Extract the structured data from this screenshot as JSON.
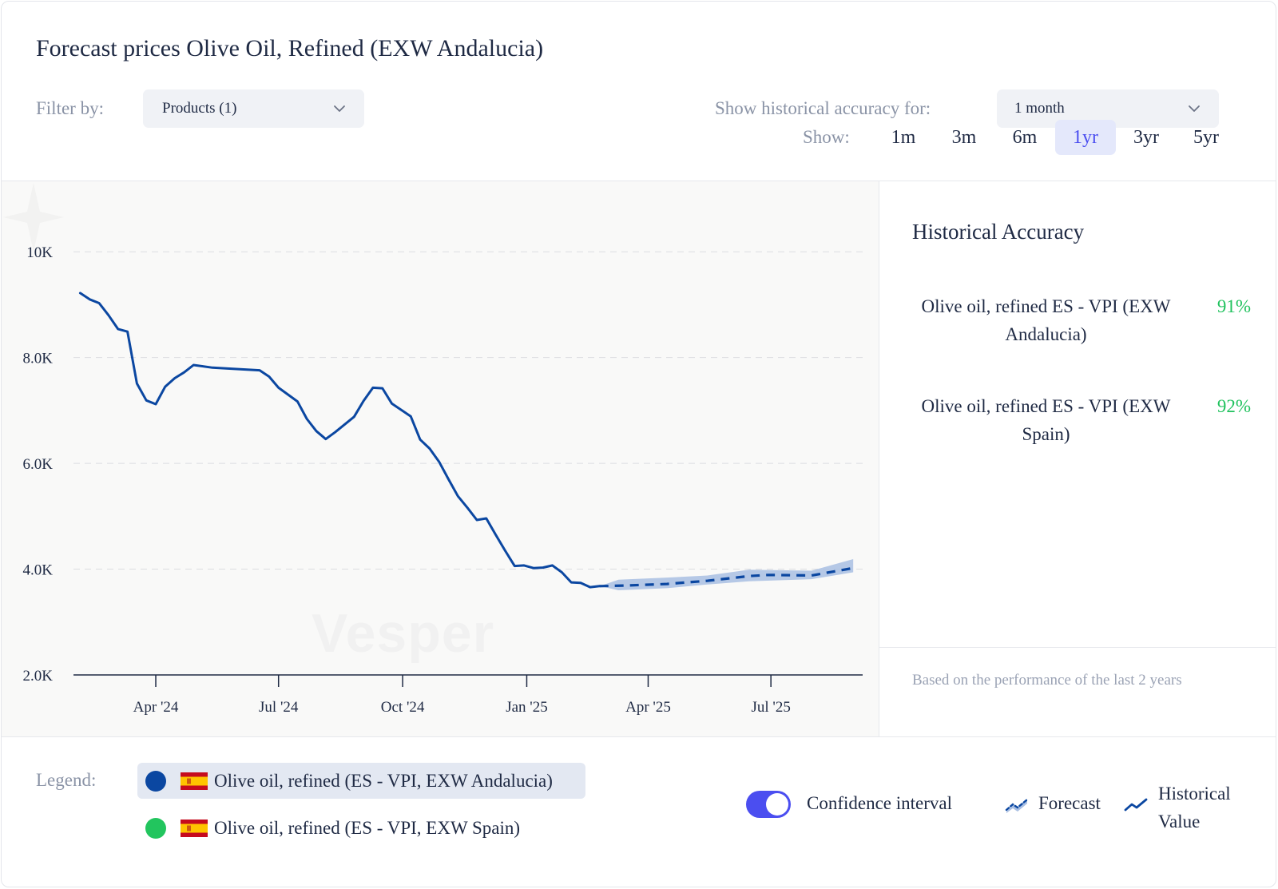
{
  "title": "Forecast prices Olive Oil, Refined (EXW Andalucia)",
  "filters": {
    "filter_label": "Filter by:",
    "products_value": "Products (1)",
    "accuracy_label": "Show historical accuracy for:",
    "accuracy_value": "1 month",
    "show_label": "Show:",
    "ranges": [
      "1m",
      "3m",
      "6m",
      "1yr",
      "3yr",
      "5yr"
    ],
    "active_range": "1yr"
  },
  "historical_accuracy": {
    "title": "Historical Accuracy",
    "items": [
      {
        "name": "Olive oil, refined ES - VPI (EXW Andalucia)",
        "line1": "Olive oil, refined ES - VPI (EXW",
        "line2": "Andalucia)",
        "value": "91%"
      },
      {
        "name": "Olive oil, refined ES - VPI (EXW Spain)",
        "line1": "Olive oil, refined ES - VPI (EXW",
        "line2": "Spain)",
        "value": "92%"
      }
    ],
    "footnote": "Based on the performance of the last 2 years"
  },
  "legend": {
    "label": "Legend:",
    "items": [
      {
        "name": "Olive oil, refined (ES - VPI, EXW Andalucia)",
        "color": "#0b47a1",
        "active": true
      },
      {
        "name": "Olive oil, refined (ES - VPI, EXW Spain)",
        "color": "#22c55e",
        "active": false
      }
    ],
    "confidence_label": "Confidence interval",
    "confidence_on": true,
    "forecast_label": "Forecast",
    "historical_label_1": "Historical",
    "historical_label_2": "Value"
  },
  "watermark": "Vesper",
  "colors": {
    "series": "#0b47a1",
    "band": "#a9bfe3",
    "accent": "#4b4ef0",
    "positive": "#21c25e"
  },
  "chart_data": {
    "type": "line",
    "x_axis": "time",
    "xlim": [
      "2024-01-31",
      "2025-09-07"
    ],
    "ylim": [
      2000,
      10200
    ],
    "yticks": [
      {
        "value": 2000,
        "label": "2.0K"
      },
      {
        "value": 4000,
        "label": "4.0K"
      },
      {
        "value": 6000,
        "label": "6.0K"
      },
      {
        "value": 8000,
        "label": "8.0K"
      },
      {
        "value": 10000,
        "label": "10K"
      }
    ],
    "xticks": [
      {
        "date": "2024-04-01",
        "label": "Apr '24"
      },
      {
        "date": "2024-07-01",
        "label": "Jul '24"
      },
      {
        "date": "2024-10-01",
        "label": "Oct '24"
      },
      {
        "date": "2025-01-01",
        "label": "Jan '25"
      },
      {
        "date": "2025-04-01",
        "label": "Apr '25"
      },
      {
        "date": "2025-07-01",
        "label": "Jul '25"
      }
    ],
    "grid": "horizontal-dashed",
    "series": [
      {
        "type": "historical",
        "points": [
          [
            "2024-02-05",
            9220
          ],
          [
            "2024-02-12",
            9100
          ],
          [
            "2024-02-19",
            9030
          ],
          [
            "2024-02-26",
            8800
          ],
          [
            "2024-03-04",
            8540
          ],
          [
            "2024-03-11",
            8490
          ],
          [
            "2024-03-18",
            7510
          ],
          [
            "2024-03-25",
            7190
          ],
          [
            "2024-04-01",
            7120
          ],
          [
            "2024-04-08",
            7450
          ],
          [
            "2024-04-15",
            7610
          ],
          [
            "2024-04-22",
            7720
          ],
          [
            "2024-04-29",
            7860
          ],
          [
            "2024-05-13",
            7810
          ],
          [
            "2024-05-27",
            7790
          ],
          [
            "2024-06-17",
            7760
          ],
          [
            "2024-06-24",
            7640
          ],
          [
            "2024-07-01",
            7430
          ],
          [
            "2024-07-15",
            7170
          ],
          [
            "2024-07-22",
            6840
          ],
          [
            "2024-07-29",
            6610
          ],
          [
            "2024-08-05",
            6460
          ],
          [
            "2024-08-12",
            6590
          ],
          [
            "2024-08-26",
            6880
          ],
          [
            "2024-09-02",
            7180
          ],
          [
            "2024-09-09",
            7430
          ],
          [
            "2024-09-16",
            7420
          ],
          [
            "2024-09-23",
            7130
          ],
          [
            "2024-10-07",
            6890
          ],
          [
            "2024-10-14",
            6450
          ],
          [
            "2024-10-21",
            6280
          ],
          [
            "2024-10-28",
            6030
          ],
          [
            "2024-11-04",
            5700
          ],
          [
            "2024-11-11",
            5380
          ],
          [
            "2024-11-18",
            5160
          ],
          [
            "2024-11-25",
            4930
          ],
          [
            "2024-12-02",
            4960
          ],
          [
            "2024-12-09",
            4650
          ],
          [
            "2024-12-16",
            4350
          ],
          [
            "2024-12-23",
            4060
          ],
          [
            "2024-12-30",
            4070
          ],
          [
            "2025-01-06",
            4020
          ],
          [
            "2025-01-13",
            4030
          ],
          [
            "2025-01-20",
            4070
          ],
          [
            "2025-01-27",
            3940
          ],
          [
            "2025-02-03",
            3750
          ],
          [
            "2025-02-10",
            3740
          ],
          [
            "2025-02-17",
            3660
          ],
          [
            "2025-02-24",
            3680
          ]
        ]
      },
      {
        "type": "forecast",
        "points": [
          [
            "2025-02-24",
            3680
          ],
          [
            "2025-03-15",
            3690
          ],
          [
            "2025-04-15",
            3720
          ],
          [
            "2025-05-15",
            3780
          ],
          [
            "2025-06-15",
            3870
          ],
          [
            "2025-06-29",
            3890
          ],
          [
            "2025-07-31",
            3880
          ],
          [
            "2025-08-31",
            4020
          ]
        ],
        "lower": [
          [
            "2025-02-24",
            3680
          ],
          [
            "2025-03-10",
            3600
          ],
          [
            "2025-04-15",
            3640
          ],
          [
            "2025-05-15",
            3710
          ],
          [
            "2025-06-15",
            3770
          ],
          [
            "2025-07-31",
            3810
          ],
          [
            "2025-08-31",
            3940
          ]
        ],
        "upper": [
          [
            "2025-02-24",
            3680
          ],
          [
            "2025-03-10",
            3800
          ],
          [
            "2025-04-15",
            3840
          ],
          [
            "2025-05-15",
            3880
          ],
          [
            "2025-06-15",
            3990
          ],
          [
            "2025-07-31",
            3970
          ],
          [
            "2025-08-31",
            4190
          ]
        ]
      }
    ]
  }
}
